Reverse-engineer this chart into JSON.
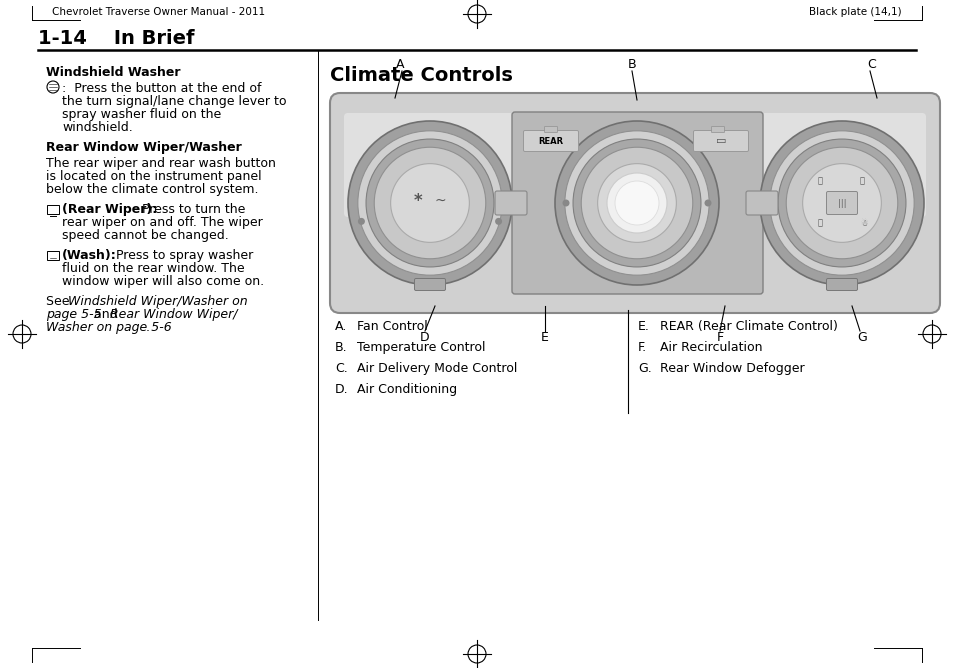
{
  "header_left": "Chevrolet Traverse Owner Manual - 2011",
  "header_right": "Black plate (14,1)",
  "page_title": "1-14    In Brief",
  "section_title": "Climate Controls",
  "legend_left": [
    [
      "A.",
      "Fan Control"
    ],
    [
      "B.",
      "Temperature Control"
    ],
    [
      "C.",
      "Air Delivery Mode Control"
    ],
    [
      "D.",
      "Air Conditioning"
    ]
  ],
  "legend_right": [
    [
      "E.",
      "REAR (Rear Climate Control)"
    ],
    [
      "F.",
      "Air Recirculation"
    ],
    [
      "G.",
      "Rear Window Defogger"
    ]
  ],
  "bg_color": "#ffffff",
  "text_color": "#000000",
  "divider_color": "#000000"
}
